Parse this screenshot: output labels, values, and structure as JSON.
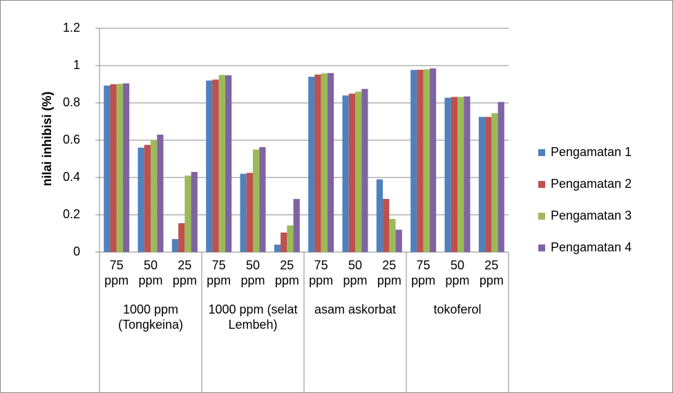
{
  "chart_data": {
    "type": "bar",
    "y_label": "nilai inhibisi (%)",
    "categories": [
      "75 ppm",
      "50 ppm",
      "25 ppm",
      "75 ppm",
      "50 ppm",
      "25 ppm",
      "75 ppm",
      "50 ppm",
      "25 ppm",
      "75 ppm",
      "50 ppm",
      "25 ppm"
    ],
    "groups": [
      "1000 ppm (Tongkeina)",
      "1000 ppm (selat Lembeh)",
      "asam askorbat",
      "tokoferol"
    ],
    "series": [
      {
        "name": "Pengamatan 1",
        "color": "#4f81bd",
        "values": [
          0.893,
          0.56,
          0.07,
          0.92,
          0.42,
          0.04,
          0.94,
          0.84,
          0.39,
          0.977,
          0.828,
          0.725
        ]
      },
      {
        "name": "Pengamatan 2",
        "color": "#c0504d",
        "values": [
          0.9,
          0.575,
          0.155,
          0.925,
          0.425,
          0.105,
          0.952,
          0.85,
          0.285,
          0.978,
          0.832,
          0.725
        ]
      },
      {
        "name": "Pengamatan 3",
        "color": "#9bbb59",
        "values": [
          0.902,
          0.6,
          0.41,
          0.95,
          0.55,
          0.143,
          0.958,
          0.86,
          0.178,
          0.98,
          0.832,
          0.745
        ]
      },
      {
        "name": "Pengamatan 4",
        "color": "#8064a2",
        "values": [
          0.905,
          0.63,
          0.43,
          0.948,
          0.563,
          0.285,
          0.96,
          0.875,
          0.12,
          0.985,
          0.835,
          0.805
        ]
      }
    ],
    "ylim": [
      0,
      1.2
    ],
    "yticks": [
      0,
      0.2,
      0.4,
      0.6,
      0.8,
      1,
      1.2
    ],
    "grid": true,
    "legend": "right"
  }
}
